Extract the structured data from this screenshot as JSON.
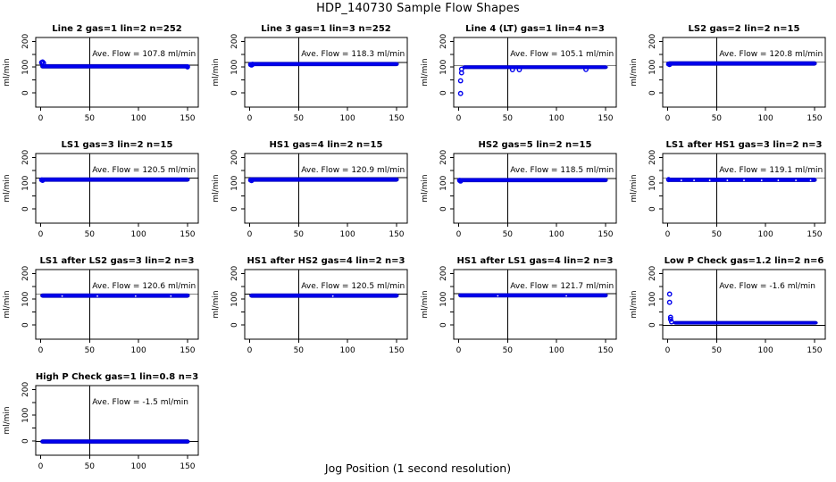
{
  "page": {
    "title": "HDP_140730  Sample Flow Shapes",
    "xlabel": "Jog Position (1 second resolution)"
  },
  "colors": {
    "point_blue": "#0000EE",
    "band_edge": "#0000B8",
    "axis_black": "#000000",
    "background": "#FFFFFF"
  },
  "axes": {
    "x_min": -5,
    "x_max": 161,
    "y_min": -55,
    "y_max": 215,
    "xticks": [
      0,
      50,
      100,
      150
    ],
    "yticks": [
      0,
      50,
      100,
      150,
      200
    ],
    "ytick_labels": [
      "0",
      "100",
      "200"
    ],
    "ylabel": "ml/min",
    "vline_x": 50,
    "grid": false
  },
  "chart_data": [
    {
      "type": "scatter",
      "title": "Line 2 gas=1 lin=2 n=252",
      "ave_flow": 107.8,
      "ave_label": "Ave. Flow =  107.8  ml/min",
      "band": {
        "x0": 0,
        "x1": 152,
        "top": 110,
        "bottom": 96
      },
      "points": [
        [
          1,
          118
        ],
        [
          2,
          120
        ],
        [
          3,
          116
        ],
        [
          150,
          101
        ]
      ],
      "gaps": []
    },
    {
      "type": "scatter",
      "title": "Line 3 gas=1 lin=3 n=252",
      "ave_flow": 118.3,
      "ave_label": "Ave. Flow =  118.3  ml/min",
      "band": {
        "x0": 0,
        "x1": 152,
        "top": 119,
        "bottom": 105
      },
      "points": [
        [
          1,
          110
        ],
        [
          2,
          108
        ],
        [
          3,
          111
        ]
      ],
      "gaps": []
    },
    {
      "type": "scatter",
      "title": "Line 4 (LT) gas=1 lin=4 n=3",
      "ave_flow": 105.1,
      "ave_label": "Ave. Flow =  105.1  ml/min",
      "band": {
        "x0": 4,
        "x1": 152,
        "top": 106,
        "bottom": 94
      },
      "points": [
        [
          2,
          -2
        ],
        [
          2,
          47
        ],
        [
          3,
          78
        ],
        [
          3,
          92
        ],
        [
          55,
          90
        ],
        [
          62,
          90
        ],
        [
          130,
          91
        ]
      ],
      "gaps": []
    },
    {
      "type": "scatter",
      "title": "LS2 gas=2 lin=2 n=15",
      "ave_flow": 120.8,
      "ave_label": "Ave. Flow =  120.8  ml/min",
      "band": {
        "x0": 0,
        "x1": 152,
        "top": 121.5,
        "bottom": 107
      },
      "points": [
        [
          1,
          112
        ],
        [
          2,
          110
        ]
      ],
      "gaps": []
    },
    {
      "type": "scatter",
      "title": "LS1 gas=3 lin=2 n=15",
      "ave_flow": 120.5,
      "ave_label": "Ave. Flow =  120.5  ml/min",
      "band": {
        "x0": 0,
        "x1": 152,
        "top": 121,
        "bottom": 107
      },
      "points": [
        [
          1,
          113
        ],
        [
          2,
          111
        ]
      ],
      "gaps": []
    },
    {
      "type": "scatter",
      "title": "HS1 gas=4 lin=2 n=15",
      "ave_flow": 120.9,
      "ave_label": "Ave. Flow =  120.9  ml/min",
      "band": {
        "x0": 0,
        "x1": 152,
        "top": 121.5,
        "bottom": 107
      },
      "points": [
        [
          1,
          112
        ],
        [
          2,
          110
        ]
      ],
      "gaps": []
    },
    {
      "type": "scatter",
      "title": "HS2 gas=5 lin=2 n=15",
      "ave_flow": 118.5,
      "ave_label": "Ave. Flow =  118.5  ml/min",
      "band": {
        "x0": 0,
        "x1": 152,
        "top": 119,
        "bottom": 105
      },
      "points": [
        [
          1,
          111
        ],
        [
          2,
          108
        ]
      ],
      "gaps": []
    },
    {
      "type": "scatter",
      "title": "LS1 after HS1 gas=3 lin=2 n=3",
      "ave_flow": 119.1,
      "ave_label": "Ave. Flow =  119.1  ml/min",
      "band": {
        "x0": 0,
        "x1": 152,
        "top": 120,
        "bottom": 106
      },
      "points": [
        [
          1,
          114
        ]
      ],
      "gaps": [
        14,
        27,
        43,
        61,
        78,
        96,
        113,
        131,
        146
      ]
    },
    {
      "type": "scatter",
      "title": "LS1 after LS2 gas=3 lin=2 n=3",
      "ave_flow": 120.6,
      "ave_label": "Ave. Flow =  120.6  ml/min",
      "band": {
        "x0": 0,
        "x1": 152,
        "top": 121,
        "bottom": 107
      },
      "points": [],
      "gaps": [
        22,
        58,
        97,
        133
      ]
    },
    {
      "type": "scatter",
      "title": "HS1 after HS2 gas=4 lin=2 n=3",
      "ave_flow": 120.5,
      "ave_label": "Ave. Flow =  120.5  ml/min",
      "band": {
        "x0": 0,
        "x1": 152,
        "top": 121,
        "bottom": 107
      },
      "points": [],
      "gaps": [
        85
      ]
    },
    {
      "type": "scatter",
      "title": "HS1 after LS1 gas=4 lin=2 n=3",
      "ave_flow": 121.7,
      "ave_label": "Ave. Flow =  121.7  ml/min",
      "band": {
        "x0": 0,
        "x1": 152,
        "top": 122,
        "bottom": 108
      },
      "points": [],
      "gaps": [
        40,
        110
      ]
    },
    {
      "type": "scatter",
      "title": "Low P Check gas=1.2 lin=2 n=6",
      "ave_flow": -1.6,
      "ave_label": "Ave. Flow =  -1.6  ml/min",
      "band": {
        "x0": 6,
        "x1": 153,
        "top": 14,
        "bottom": 3
      },
      "points": [
        [
          2,
          120
        ],
        [
          2,
          88
        ],
        [
          3,
          30
        ],
        [
          3,
          22
        ],
        [
          4,
          12
        ]
      ],
      "gaps": []
    },
    {
      "type": "scatter",
      "title": "High P Check gas=1 lin=0.8 n=3",
      "ave_flow": -1.5,
      "ave_label": "Ave. Flow =  -1.5  ml/min",
      "band": {
        "x0": 0,
        "x1": 152,
        "top": 5,
        "bottom": -9
      },
      "points": [],
      "gaps": []
    }
  ]
}
